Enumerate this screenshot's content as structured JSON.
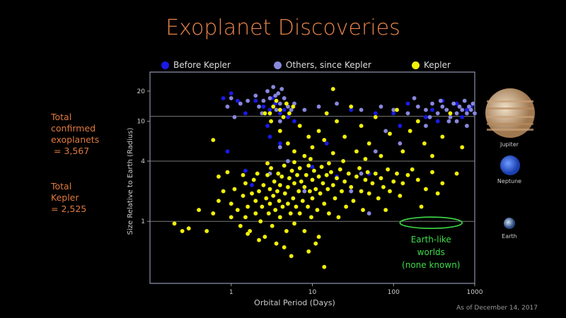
{
  "title": "Exoplanet Discoveries",
  "stats": {
    "total_confirmed": "Total\nconfirmed\nexoplanets\n = 3,567",
    "total_kepler": "Total\nKepler\n= 2,525"
  },
  "footer": "As of December 14, 2017",
  "planets": [
    {
      "name": "Jupiter",
      "radius": 11.2,
      "color": "#c9a27a"
    },
    {
      "name": "Neptune",
      "radius": 3.9,
      "color": "#3a6fe0"
    },
    {
      "name": "Earth",
      "radius": 1,
      "color": "#4a6fa8"
    }
  ],
  "annotation": {
    "text_1": "Earth-like",
    "text_2": "worlds",
    "text_3": "(none known)",
    "color": "#3ddc4a",
    "period_range": [
      120,
      700
    ],
    "radius": 1
  },
  "chart_data": {
    "type": "scatter",
    "title": "Exoplanet Discoveries",
    "xlabel": "Orbital Period (Days)",
    "ylabel": "Size Relative to Earth (Radius)",
    "xscale": "log",
    "yscale": "log",
    "xlim": [
      0.1,
      1000
    ],
    "ylim": [
      0.24,
      31
    ],
    "xticks": [
      {
        "v": 1,
        "label": "1"
      },
      {
        "v": 10,
        "label": "10"
      },
      {
        "v": 100,
        "label": "100"
      },
      {
        "v": 1000,
        "label": "1000"
      }
    ],
    "yticks": [
      {
        "v": 1,
        "label": "1"
      },
      {
        "v": 4,
        "label": "4"
      },
      {
        "v": 10,
        "label": "10"
      },
      {
        "v": 20,
        "label": "20"
      }
    ],
    "hlines": [
      1,
      4,
      11.2
    ],
    "legend_position": "top",
    "series": [
      {
        "name": "Before Kepler",
        "color": "#1a1ae6",
        "points": [
          [
            2,
            16
          ],
          [
            2.5,
            14
          ],
          [
            3,
            13
          ],
          [
            3.5,
            15
          ],
          [
            4,
            12
          ],
          [
            4.5,
            13
          ],
          [
            3.2,
            17
          ],
          [
            5,
            11
          ],
          [
            1.5,
            12
          ],
          [
            1.2,
            16
          ],
          [
            6,
            10
          ],
          [
            30,
            13
          ],
          [
            100,
            12
          ],
          [
            200,
            14
          ],
          [
            300,
            13
          ],
          [
            500,
            12
          ],
          [
            700,
            11
          ],
          [
            800,
            13
          ],
          [
            400,
            16
          ],
          [
            250,
            11
          ],
          [
            150,
            15
          ],
          [
            60,
            12
          ],
          [
            2.8,
            9
          ],
          [
            4,
            6
          ],
          [
            1.5,
            3.2
          ],
          [
            1.8,
            2.3
          ],
          [
            0.9,
            5
          ],
          [
            10,
            3.5
          ],
          [
            20,
            2.8
          ],
          [
            50,
            3
          ],
          [
            15,
            6
          ],
          [
            3,
            7
          ],
          [
            8,
            2.2
          ],
          [
            900,
            14
          ],
          [
            600,
            15
          ],
          [
            350,
            10
          ],
          [
            120,
            9
          ],
          [
            1000,
            12
          ],
          [
            0.8,
            17
          ],
          [
            1,
            19
          ]
        ]
      },
      {
        "name": "Others, since Kepler",
        "color": "#8888dd",
        "points": [
          [
            1.3,
            15
          ],
          [
            1.6,
            16
          ],
          [
            2,
            18
          ],
          [
            2.5,
            16
          ],
          [
            3,
            17
          ],
          [
            3.5,
            18
          ],
          [
            4,
            15
          ],
          [
            3.8,
            19
          ],
          [
            4.5,
            17
          ],
          [
            5,
            14
          ],
          [
            2.2,
            14
          ],
          [
            1.1,
            11
          ],
          [
            3,
            12
          ],
          [
            4,
            10
          ],
          [
            5.5,
            13
          ],
          [
            6,
            15
          ],
          [
            3.3,
            22
          ],
          [
            2.8,
            20
          ],
          [
            4.2,
            21
          ],
          [
            8,
            13
          ],
          [
            12,
            14
          ],
          [
            20,
            15
          ],
          [
            40,
            13
          ],
          [
            70,
            14
          ],
          [
            100,
            13
          ],
          [
            150,
            12
          ],
          [
            200,
            14
          ],
          [
            250,
            13
          ],
          [
            300,
            15
          ],
          [
            350,
            12
          ],
          [
            400,
            14
          ],
          [
            450,
            13
          ],
          [
            500,
            11
          ],
          [
            550,
            15
          ],
          [
            600,
            12
          ],
          [
            650,
            14
          ],
          [
            700,
            13
          ],
          [
            750,
            16
          ],
          [
            800,
            12
          ],
          [
            850,
            14
          ],
          [
            900,
            13
          ],
          [
            950,
            15
          ],
          [
            1000,
            12
          ],
          [
            180,
            17
          ],
          [
            280,
            11
          ],
          [
            380,
            16
          ],
          [
            480,
            10
          ],
          [
            60,
            5
          ],
          [
            40,
            3
          ],
          [
            30,
            2
          ],
          [
            50,
            1.2
          ],
          [
            5,
            4
          ],
          [
            4,
            5.5
          ],
          [
            8,
            2
          ],
          [
            3,
            3
          ],
          [
            80,
            8
          ],
          [
            120,
            6
          ],
          [
            250,
            9
          ],
          [
            600,
            10
          ],
          [
            800,
            9
          ],
          [
            0.9,
            14
          ],
          [
            1.0,
            17
          ],
          [
            2.4,
            12
          ],
          [
            3.6,
            13
          ]
        ]
      },
      {
        "name": "Kepler",
        "color": "#f2f20a",
        "points": [
          [
            0.2,
            0.95
          ],
          [
            0.3,
            0.85
          ],
          [
            0.5,
            0.8
          ],
          [
            0.6,
            1.2
          ],
          [
            0.7,
            1.6
          ],
          [
            0.8,
            2.0
          ],
          [
            0.7,
            2.8
          ],
          [
            0.9,
            3.1
          ],
          [
            0.6,
            6.5
          ],
          [
            1,
            1.1
          ],
          [
            1,
            1.5
          ],
          [
            1.1,
            2.1
          ],
          [
            1.2,
            1.3
          ],
          [
            1.3,
            0.9
          ],
          [
            1.4,
            1.8
          ],
          [
            1.5,
            2.4
          ],
          [
            1.5,
            1.1
          ],
          [
            1.6,
            1.4
          ],
          [
            1.7,
            0.8
          ],
          [
            1.8,
            1.9
          ],
          [
            1.9,
            2.6
          ],
          [
            2,
            1.2
          ],
          [
            2,
            1.6
          ],
          [
            2.1,
            3.0
          ],
          [
            2.2,
            2.0
          ],
          [
            2.3,
            1.0
          ],
          [
            2.4,
            1.4
          ],
          [
            2.5,
            2.3
          ],
          [
            2.6,
            0.7
          ],
          [
            2.7,
            1.7
          ],
          [
            2.8,
            2.9
          ],
          [
            2.9,
            1.2
          ],
          [
            3,
            1.5
          ],
          [
            3,
            2.1
          ],
          [
            3.1,
            3.4
          ],
          [
            3.2,
            0.9
          ],
          [
            3.3,
            1.8
          ],
          [
            3.4,
            2.5
          ],
          [
            3.5,
            1.3
          ],
          [
            3.6,
            0.6
          ],
          [
            3.7,
            2.0
          ],
          [
            3.8,
            3.0
          ],
          [
            3.9,
            1.6
          ],
          [
            4,
            2.3
          ],
          [
            4,
            1.1
          ],
          [
            4.2,
            2.8
          ],
          [
            4.3,
            1.4
          ],
          [
            4.5,
            3.6
          ],
          [
            4.6,
            1.9
          ],
          [
            4.8,
            0.8
          ],
          [
            5,
            2.2
          ],
          [
            5,
            1.5
          ],
          [
            5.2,
            2.7
          ],
          [
            5.4,
            1.2
          ],
          [
            5.6,
            3.2
          ],
          [
            5.8,
            1.7
          ],
          [
            6,
            2.4
          ],
          [
            6,
            0.95
          ],
          [
            6.3,
            1.4
          ],
          [
            6.5,
            2.9
          ],
          [
            6.8,
            2.0
          ],
          [
            7,
            1.2
          ],
          [
            7,
            3.4
          ],
          [
            7.3,
            2.5
          ],
          [
            7.6,
            1.6
          ],
          [
            8,
            2.2
          ],
          [
            8,
            0.8
          ],
          [
            8.4,
            2.9
          ],
          [
            8.8,
            1.4
          ],
          [
            9,
            3.6
          ],
          [
            9.3,
            2.0
          ],
          [
            9.7,
            1.1
          ],
          [
            10,
            2.6
          ],
          [
            10,
            1.7
          ],
          [
            10.5,
            3.2
          ],
          [
            11,
            2.1
          ],
          [
            11.5,
            1.3
          ],
          [
            12,
            2.8
          ],
          [
            12,
            0.7
          ],
          [
            12.5,
            1.9
          ],
          [
            13,
            3.5
          ],
          [
            13.5,
            2.4
          ],
          [
            14,
            0.35
          ],
          [
            14,
            1.5
          ],
          [
            15,
            2.9
          ],
          [
            15.5,
            2.1
          ],
          [
            16,
            1.2
          ],
          [
            17,
            3.1
          ],
          [
            18,
            2.3
          ],
          [
            19,
            1.7
          ],
          [
            20,
            2.7
          ],
          [
            21,
            1.1
          ],
          [
            22,
            3.3
          ],
          [
            23,
            2.0
          ],
          [
            25,
            2.5
          ],
          [
            26,
            1.4
          ],
          [
            28,
            3.0
          ],
          [
            30,
            2.2
          ],
          [
            32,
            1.6
          ],
          [
            35,
            2.8
          ],
          [
            38,
            3.4
          ],
          [
            40,
            2.0
          ],
          [
            42,
            1.3
          ],
          [
            45,
            2.6
          ],
          [
            48,
            3.1
          ],
          [
            50,
            1.9
          ],
          [
            55,
            2.4
          ],
          [
            60,
            3.0
          ],
          [
            65,
            1.7
          ],
          [
            70,
            2.7
          ],
          [
            75,
            2.2
          ],
          [
            80,
            1.3
          ],
          [
            85,
            3.3
          ],
          [
            90,
            2.0
          ],
          [
            100,
            2.5
          ],
          [
            110,
            3.0
          ],
          [
            120,
            1.8
          ],
          [
            130,
            2.4
          ],
          [
            150,
            2.9
          ],
          [
            170,
            3.3
          ],
          [
            200,
            2.6
          ],
          [
            220,
            1.4
          ],
          [
            250,
            2.1
          ],
          [
            300,
            3.1
          ],
          [
            350,
            1.9
          ],
          [
            400,
            2.4
          ],
          [
            600,
            3.0
          ],
          [
            3,
            12
          ],
          [
            3.3,
            14
          ],
          [
            3.6,
            16
          ],
          [
            4,
            13
          ],
          [
            4.4,
            11
          ],
          [
            4.8,
            15
          ],
          [
            5.2,
            12
          ],
          [
            5.8,
            14
          ],
          [
            2.6,
            12
          ],
          [
            3.1,
            10
          ],
          [
            4,
            8
          ],
          [
            5,
            6
          ],
          [
            6,
            5
          ],
          [
            7,
            9
          ],
          [
            8,
            4.5
          ],
          [
            9,
            7
          ],
          [
            10,
            5.5
          ],
          [
            12,
            8
          ],
          [
            14,
            6.5
          ],
          [
            15,
            12
          ],
          [
            18,
            4.8
          ],
          [
            20,
            10
          ],
          [
            25,
            7
          ],
          [
            30,
            14
          ],
          [
            35,
            5
          ],
          [
            40,
            9
          ],
          [
            50,
            6
          ],
          [
            60,
            11
          ],
          [
            70,
            4.5
          ],
          [
            90,
            7.5
          ],
          [
            110,
            13
          ],
          [
            130,
            5
          ],
          [
            160,
            8
          ],
          [
            200,
            10
          ],
          [
            240,
            6
          ],
          [
            300,
            4.5
          ],
          [
            400,
            7
          ],
          [
            500,
            12
          ],
          [
            700,
            5.5
          ],
          [
            18,
            21
          ],
          [
            1.6,
            0.75
          ],
          [
            2.2,
            0.65
          ],
          [
            4.5,
            0.55
          ],
          [
            5.5,
            0.45
          ],
          [
            9,
            0.5
          ],
          [
            11,
            0.6
          ],
          [
            1.4,
            2.9
          ],
          [
            2.8,
            3.8
          ],
          [
            6,
            3.9
          ],
          [
            9.5,
            4.2
          ],
          [
            16,
            3.8
          ],
          [
            24,
            4.0
          ],
          [
            45,
            4.2
          ],
          [
            0.25,
            0.8
          ],
          [
            0.4,
            1.3
          ]
        ]
      }
    ]
  }
}
